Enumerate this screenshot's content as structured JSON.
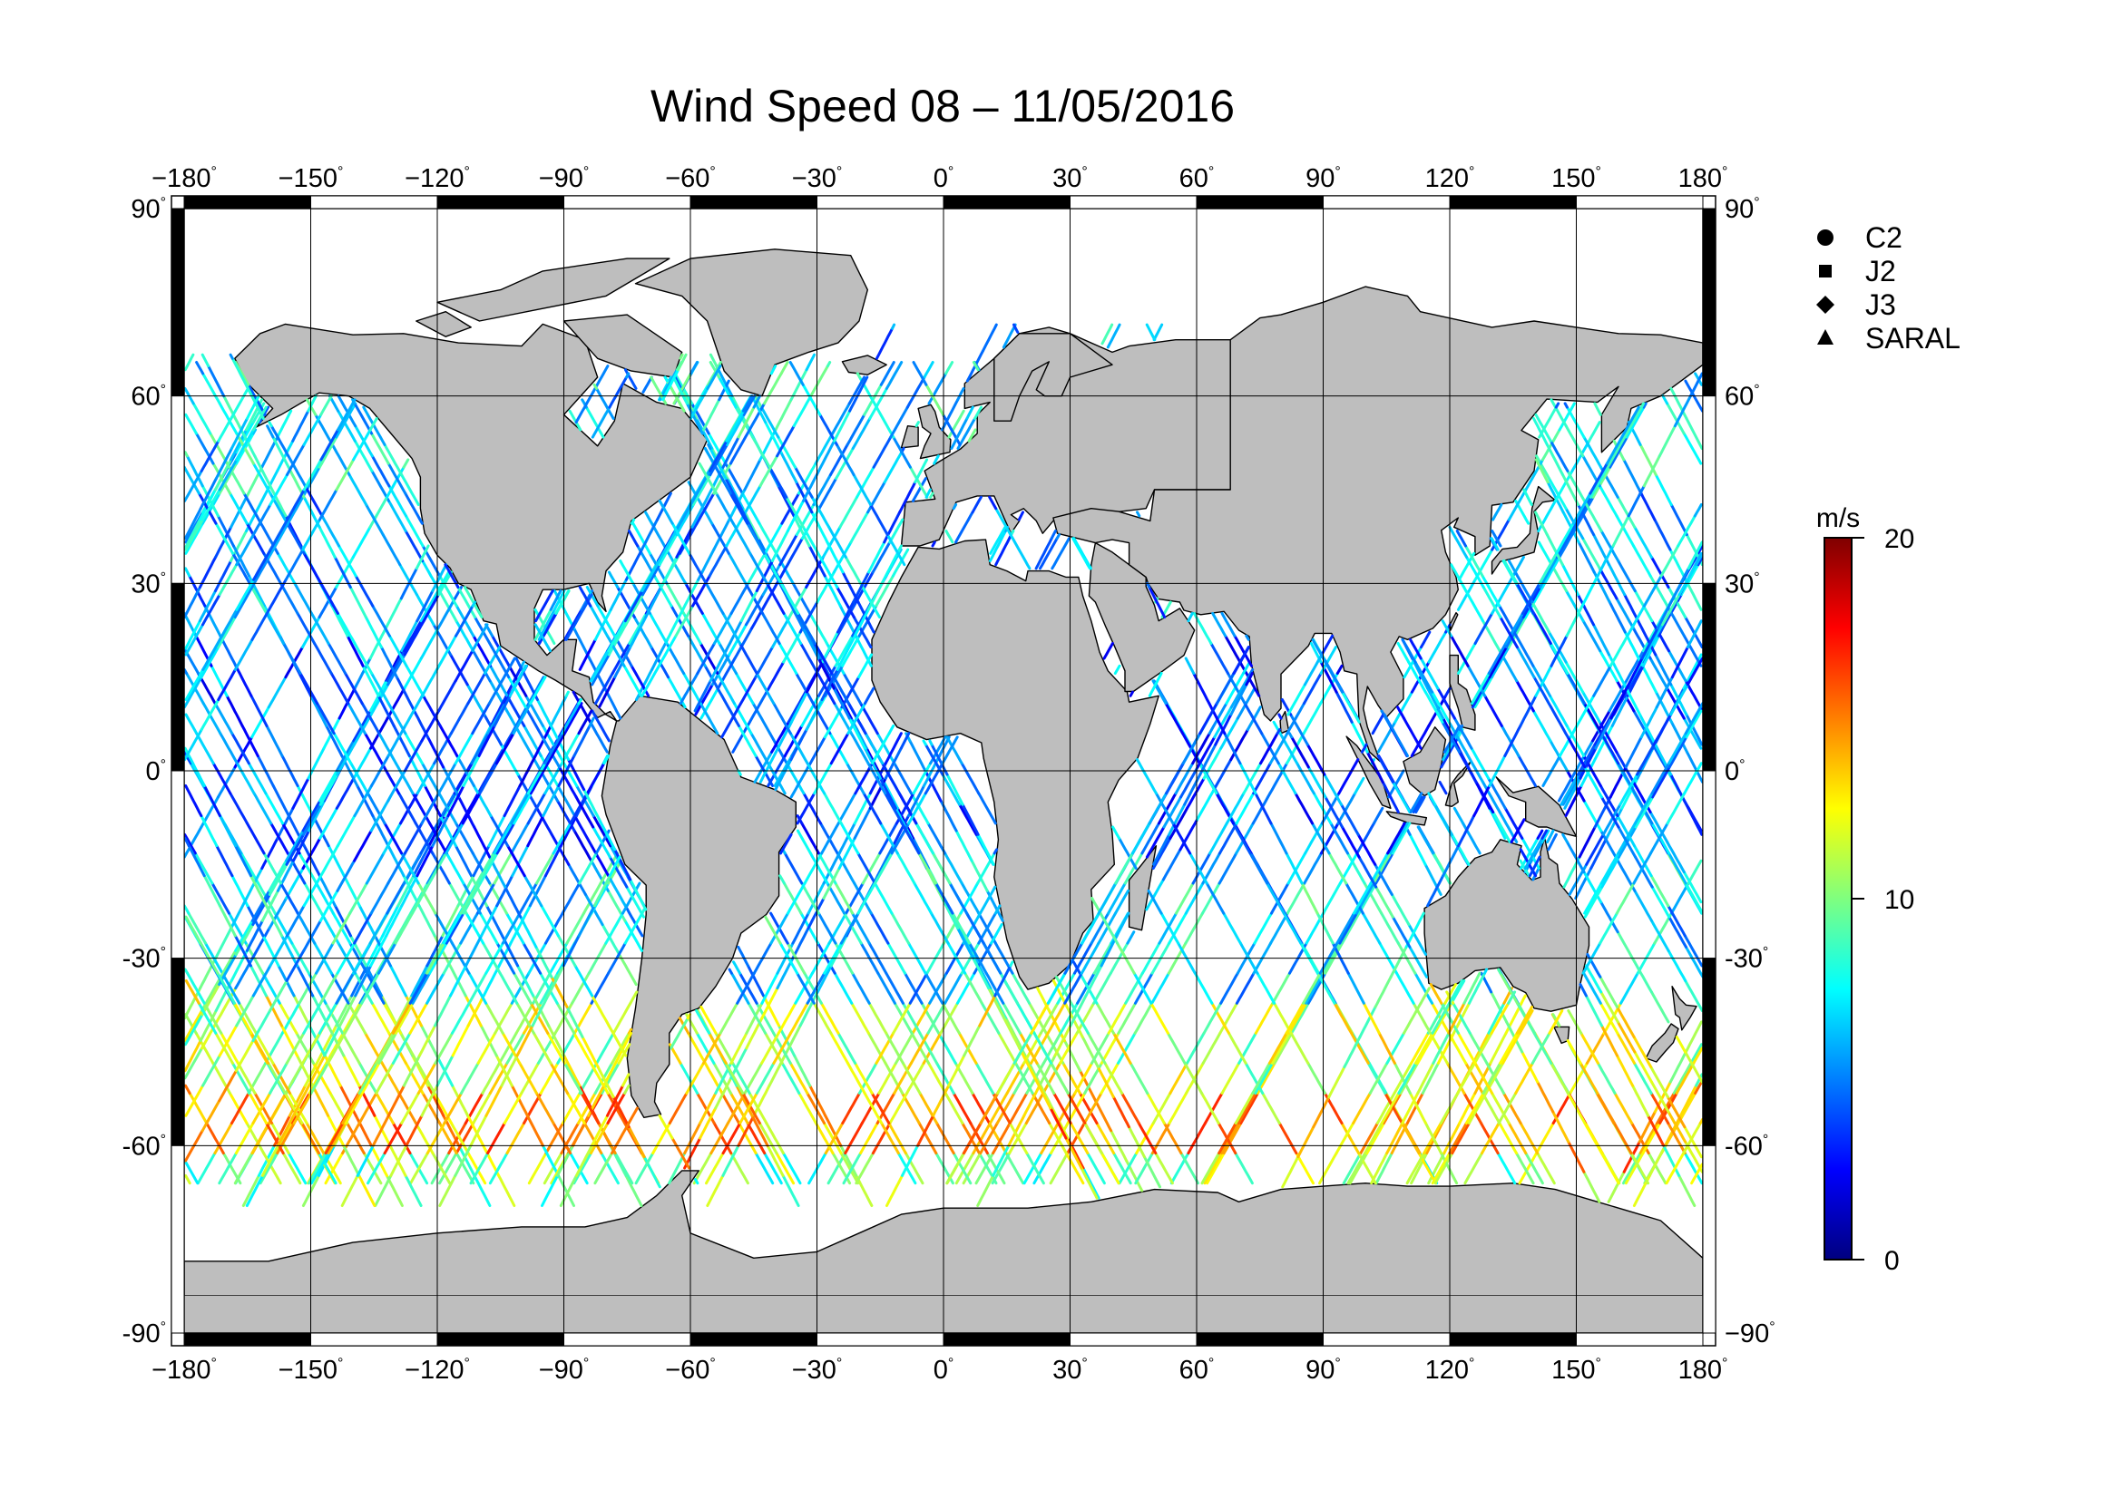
{
  "title": "Wind Speed 08 – 11/05/2016",
  "map": {
    "projection": "equirectangular",
    "lon_range": [
      -180,
      180
    ],
    "lat_range": [
      -90,
      90
    ],
    "land_color": "#bebebe",
    "ocean_color": "#ffffff",
    "graticule": true,
    "lon_ticks": [
      {
        "value": -180,
        "label": "−180"
      },
      {
        "value": -150,
        "label": "−150"
      },
      {
        "value": -120,
        "label": "−120"
      },
      {
        "value": -90,
        "label": "−90"
      },
      {
        "value": -60,
        "label": "−60"
      },
      {
        "value": -30,
        "label": "−30"
      },
      {
        "value": 0,
        "label": "0"
      },
      {
        "value": 30,
        "label": "30"
      },
      {
        "value": 60,
        "label": "60"
      },
      {
        "value": 90,
        "label": "90"
      },
      {
        "value": 120,
        "label": "120"
      },
      {
        "value": 150,
        "label": "150"
      },
      {
        "value": 180,
        "label": "180"
      }
    ],
    "lat_ticks": [
      {
        "value": 90,
        "label": "90"
      },
      {
        "value": 60,
        "label": "60"
      },
      {
        "value": 30,
        "label": "30"
      },
      {
        "value": 0,
        "label": "0"
      },
      {
        "value": -30,
        "label": "-30"
      },
      {
        "value": -60,
        "label": "-60"
      },
      {
        "value": -90,
        "label": "-90"
      }
    ],
    "lat_ticks_right": [
      {
        "value": 90,
        "label": "90"
      },
      {
        "value": 60,
        "label": "60"
      },
      {
        "value": 30,
        "label": "30"
      },
      {
        "value": 0,
        "label": "0"
      },
      {
        "value": -30,
        "label": "-30"
      },
      {
        "value": -60,
        "label": "-60"
      },
      {
        "value": -90,
        "label": "−90"
      }
    ],
    "degree_symbol": "°"
  },
  "legend": {
    "items": [
      {
        "label": "C2",
        "marker": "circle"
      },
      {
        "label": "J2",
        "marker": "square"
      },
      {
        "label": "J3",
        "marker": "diamond"
      },
      {
        "label": "SARAL",
        "marker": "triangle"
      }
    ]
  },
  "colorbar": {
    "unit": "m/s",
    "min": 0,
    "max": 20,
    "ticks": [
      {
        "value": 20,
        "label": "20"
      },
      {
        "value": 10,
        "label": "10"
      },
      {
        "value": 0,
        "label": "0"
      }
    ],
    "colormap": [
      "#00007f",
      "#0000ff",
      "#007fff",
      "#00ffff",
      "#7fff7f",
      "#ffff00",
      "#ff7f00",
      "#ff0000",
      "#7f0000"
    ]
  },
  "chart_data": {
    "type": "scatter",
    "title": "Wind Speed 08 – 11/05/2016",
    "variable": "wind speed",
    "unit": "m/s",
    "value_range": [
      0,
      20
    ],
    "xlim": [
      -180,
      180
    ],
    "ylim": [
      -90,
      90
    ],
    "series": [
      {
        "name": "C2",
        "marker": "circle"
      },
      {
        "name": "J2",
        "marker": "square"
      },
      {
        "name": "J3",
        "marker": "diamond"
      },
      {
        "name": "SARAL",
        "marker": "triangle"
      }
    ],
    "regional_wind": [
      {
        "lat_band": [
          45,
          67
        ],
        "speed": 7
      },
      {
        "lat_band": [
          20,
          45
        ],
        "speed": 6
      },
      {
        "lat_band": [
          -15,
          20
        ],
        "speed": 5
      },
      {
        "lat_band": [
          -35,
          -15
        ],
        "speed": 7
      },
      {
        "lat_band": [
          -50,
          -35
        ],
        "speed": 11
      },
      {
        "lat_band": [
          -62,
          -50
        ],
        "speed": 14
      },
      {
        "lat_band": [
          -68,
          -62
        ],
        "speed": 10
      }
    ]
  }
}
